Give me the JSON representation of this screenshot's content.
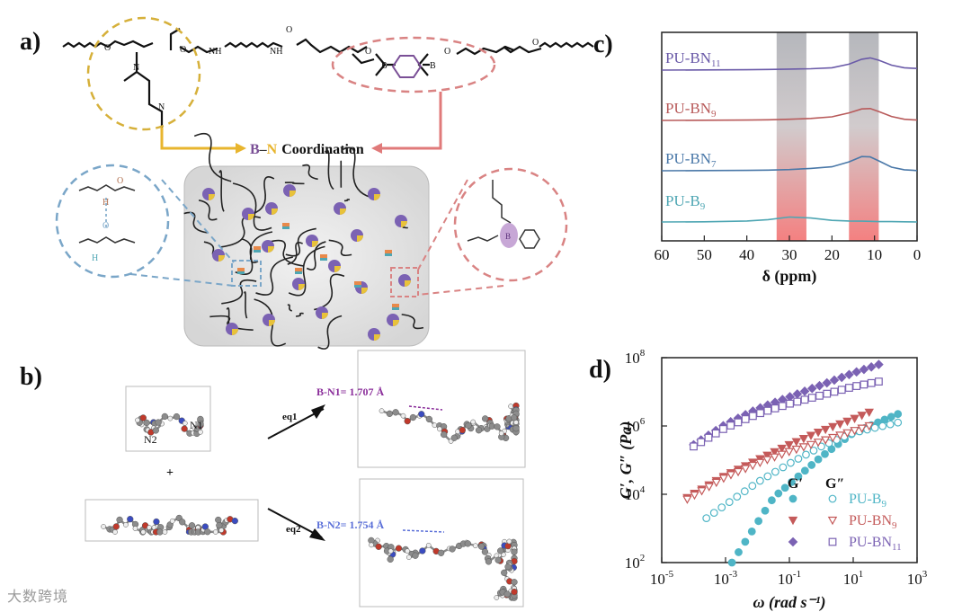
{
  "figure": {
    "panel_a": {
      "label": "a)",
      "coordination_prefix": "B",
      "coordination_dash": "–",
      "coordination_suffix": "N",
      "coordination_word": "Coordination",
      "atom_labels": {
        "N": "N",
        "B": "B",
        "O": "O",
        "NH": "NH",
        "H": "H"
      },
      "colors": {
        "amine": "#d6b03a",
        "boronic": "#d98383",
        "hbond": "#7aa6c8",
        "bond_arrow_left": "#e8b52e",
        "bond_arrow_right": "#e07a7a"
      }
    },
    "panel_b": {
      "label": "b)",
      "n1": "N1",
      "n2": "N2",
      "plus": "+",
      "eq1": "eq1",
      "eq2": "eq2",
      "bn1": "B-N1= 1.707 Å",
      "bn2": "B-N2= 1.754 Å"
    },
    "watermark": "大数跨境"
  },
  "chart_data": [
    {
      "id": "panel_c",
      "label": "c)",
      "type": "line",
      "title": "",
      "xlabel": "δ (ppm)",
      "ylabel": "",
      "xlim": [
        60,
        0
      ],
      "xticks": [
        60,
        50,
        40,
        30,
        20,
        10,
        0
      ],
      "highlight_bands": [
        [
          33,
          26
        ],
        [
          16,
          9
        ]
      ],
      "series": [
        {
          "name": "PU-BN",
          "sub": "11",
          "color": "#6a5aa8",
          "x": [
            60,
            50,
            40,
            35,
            30,
            25,
            20,
            16,
            13,
            11,
            9,
            6,
            3,
            0
          ],
          "y": [
            0,
            0.01,
            0.02,
            0.03,
            0.05,
            0.07,
            0.12,
            0.3,
            0.55,
            0.62,
            0.5,
            0.25,
            0.12,
            0.08
          ]
        },
        {
          "name": "PU-BN",
          "sub": "9",
          "color": "#b85a5a",
          "x": [
            60,
            50,
            40,
            35,
            30,
            25,
            20,
            16,
            13,
            11,
            9,
            6,
            3,
            0
          ],
          "y": [
            0,
            0.01,
            0.02,
            0.03,
            0.06,
            0.1,
            0.18,
            0.38,
            0.58,
            0.6,
            0.45,
            0.2,
            0.06,
            0.02
          ]
        },
        {
          "name": "PU-BN",
          "sub": "7",
          "color": "#4a78a8",
          "x": [
            60,
            50,
            40,
            35,
            30,
            25,
            20,
            16,
            13,
            11,
            9,
            6,
            3,
            0
          ],
          "y": [
            0,
            0.01,
            0.02,
            0.03,
            0.06,
            0.12,
            0.2,
            0.45,
            0.72,
            0.7,
            0.5,
            0.18,
            0.05,
            0.01
          ]
        },
        {
          "name": "PU-B",
          "sub": "9",
          "color": "#4ea6b3",
          "x": [
            60,
            50,
            40,
            35,
            30,
            25,
            20,
            16,
            13,
            11,
            9,
            6,
            3,
            0
          ],
          "y": [
            0,
            0.01,
            0.05,
            0.12,
            0.25,
            0.2,
            0.08,
            0.05,
            0.04,
            0.03,
            0.02,
            0.02,
            0.01,
            0
          ]
        }
      ]
    },
    {
      "id": "panel_d",
      "label": "d)",
      "type": "scatter",
      "title": "",
      "xlabel": "ω (rad s⁻¹)",
      "ylabel": "G′, G″ (Pa)",
      "xscale": "log",
      "yscale": "log",
      "xlim_exp": [
        -5,
        3
      ],
      "ylim_exp": [
        2,
        8
      ],
      "xtick_exps": [
        -5,
        -3,
        -1,
        1,
        3
      ],
      "ytick_exps": [
        2,
        4,
        6,
        8
      ],
      "legend": {
        "header_g1": "G′",
        "header_g2": "G″",
        "placement": "lower-right"
      },
      "series": [
        {
          "name": "PU-B",
          "sub": "9",
          "color": "#4fb5c6",
          "gp": {
            "lx": [
              -2.8,
              -1.5,
              0,
              1,
              2.4
            ],
            "ly": [
              2.0,
              3.9,
              5.1,
              5.8,
              6.35
            ]
          },
          "gpp": {
            "lx": [
              -3.6,
              -2,
              -1,
              0,
              1,
              2.4
            ],
            "ly": [
              3.3,
              4.35,
              4.9,
              5.4,
              5.8,
              6.1
            ]
          }
        },
        {
          "name": "PU-BN",
          "sub": "9",
          "color": "#c45a5a",
          "gp": {
            "lx": [
              -4.2,
              -3,
              -2,
              -1,
              0,
              1,
              1.5
            ],
            "ly": [
              3.9,
              4.55,
              5.0,
              5.45,
              5.85,
              6.2,
              6.4
            ]
          },
          "gpp": {
            "lx": [
              -4.2,
              -3,
              -2,
              -1,
              0,
              1,
              1.5
            ],
            "ly": [
              3.85,
              4.5,
              4.9,
              5.25,
              5.55,
              5.85,
              6.0
            ]
          }
        },
        {
          "name": "PU-BN",
          "sub": "11",
          "color": "#7b62b3",
          "gp": {
            "lx": [
              -4.0,
              -3,
              -2,
              -1,
              0,
              1,
              1.8
            ],
            "ly": [
              5.45,
              6.05,
              6.5,
              6.85,
              7.2,
              7.55,
              7.8
            ]
          },
          "gpp": {
            "lx": [
              -4.0,
              -3,
              -2,
              -1,
              0,
              1,
              1.8
            ],
            "ly": [
              5.4,
              5.95,
              6.35,
              6.65,
              6.9,
              7.15,
              7.3
            ]
          }
        }
      ]
    }
  ]
}
